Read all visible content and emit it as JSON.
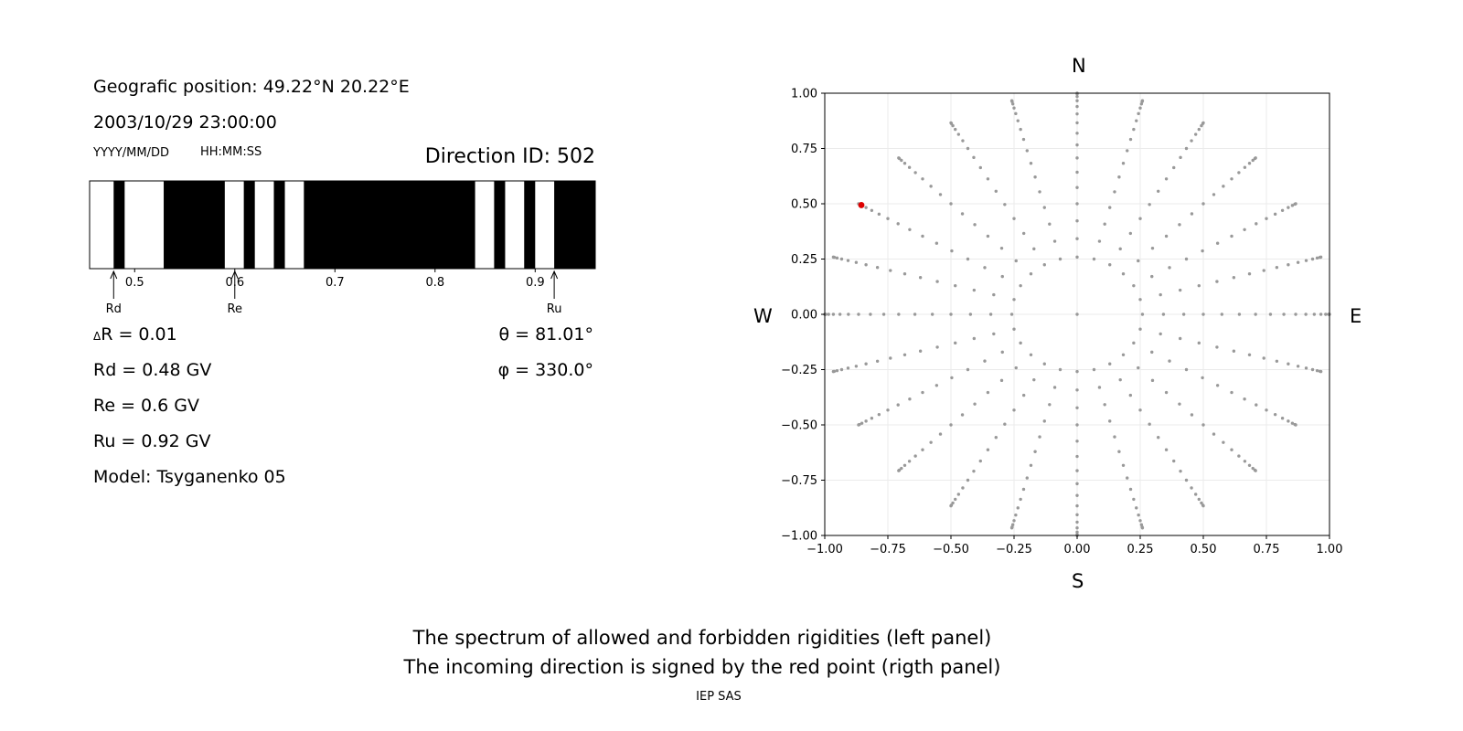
{
  "info": {
    "geo_position": "Geografic position: 49.22°N 20.22°E",
    "datetime": "2003/10/29 23:00:00",
    "date_format": "YYYY/MM/DD",
    "time_format": "HH:MM:SS",
    "direction_id": "Direction ID: 502"
  },
  "params": {
    "delta_r": "R = 0.01",
    "delta_symbol": "Δ",
    "rd": "Rd = 0.48 GV",
    "re": "Re = 0.6 GV",
    "ru": "Ru = 0.92 GV",
    "model": "Model: Tsyganenko 05",
    "theta": "θ = 81.01°",
    "phi": "φ = 330.0°"
  },
  "footer": {
    "line1": "The spectrum of allowed and forbidden rigidities (left panel)",
    "line2": "The incoming direction is signed by the red point (rigth panel)",
    "credit": "IEP SAS"
  },
  "colors": {
    "forbidden": "#000000",
    "allowed": "#ffffff",
    "grid_points": "#999999",
    "incoming": "#dd0000"
  },
  "chart_data": [
    {
      "type": "bar",
      "description_type": "rigidity spectrum strip",
      "xlim": [
        0.455,
        0.96
      ],
      "ticks": [
        0.5,
        0.6,
        0.7,
        0.8,
        0.9
      ],
      "tick_labels": [
        "0.5",
        "0.6",
        "0.7",
        "0.8",
        "0.9"
      ],
      "allowed_bands": [
        [
          0.455,
          0.479
        ],
        [
          0.49,
          0.529
        ],
        [
          0.59,
          0.609
        ],
        [
          0.62,
          0.639
        ],
        [
          0.65,
          0.669
        ],
        [
          0.84,
          0.859
        ],
        [
          0.87,
          0.889
        ],
        [
          0.9,
          0.919
        ]
      ],
      "markers": [
        {
          "label": "Rd",
          "value": 0.479
        },
        {
          "label": "Re",
          "value": 0.6
        },
        {
          "label": "Ru",
          "value": 0.919
        }
      ]
    },
    {
      "type": "scatter",
      "xlim": [
        -1,
        1
      ],
      "ylim": [
        -1,
        1
      ],
      "x_ticks": [
        "−1.00",
        "−0.75",
        "−0.50",
        "−0.25",
        "0.00",
        "0.25",
        "0.50",
        "0.75",
        "1.00"
      ],
      "y_ticks": [
        "1.00",
        "0.75",
        "0.50",
        "0.25",
        "0.00",
        "−0.25",
        "−0.50",
        "−0.75",
        "−1.00"
      ],
      "compass": {
        "north": "N",
        "south": "S",
        "east": "E",
        "west": "W"
      },
      "grid": true,
      "pattern": {
        "zenith_step_deg": 5,
        "azimuth_step_deg": 15,
        "projection": "sin(zenith)",
        "zenith_start_deg": 15,
        "zenith_end_deg": 90,
        "center_point": true
      },
      "highlight_point": {
        "x": -0.855,
        "y": 0.494
      }
    }
  ]
}
